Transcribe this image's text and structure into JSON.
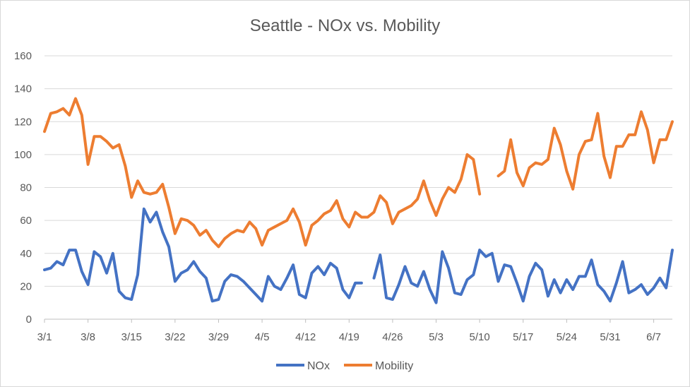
{
  "chart_data": {
    "type": "line",
    "title": "Seattle - NOx vs. Mobility",
    "xlabel": "",
    "ylabel": "",
    "ylim": [
      0,
      160
    ],
    "yticks": [
      0,
      20,
      40,
      60,
      80,
      100,
      120,
      140,
      160
    ],
    "xticks": [
      {
        "index": 0,
        "label": "3/1"
      },
      {
        "index": 7,
        "label": "3/8"
      },
      {
        "index": 14,
        "label": "3/15"
      },
      {
        "index": 21,
        "label": "3/22"
      },
      {
        "index": 28,
        "label": "3/29"
      },
      {
        "index": 35,
        "label": "4/5"
      },
      {
        "index": 42,
        "label": "4/12"
      },
      {
        "index": 49,
        "label": "4/19"
      },
      {
        "index": 56,
        "label": "4/26"
      },
      {
        "index": 63,
        "label": "5/3"
      },
      {
        "index": 70,
        "label": "5/10"
      },
      {
        "index": 77,
        "label": "5/17"
      },
      {
        "index": 84,
        "label": "5/24"
      },
      {
        "index": 91,
        "label": "5/31"
      },
      {
        "index": 98,
        "label": "6/7"
      }
    ],
    "grid": true,
    "legend": "bottom",
    "series": [
      {
        "name": "NOx",
        "color": "#4472c4",
        "values": [
          30,
          31,
          35,
          33,
          42,
          42,
          29,
          21,
          41,
          38,
          28,
          40,
          17,
          13,
          12,
          27,
          67,
          59,
          65,
          53,
          44,
          23,
          28,
          30,
          35,
          29,
          25,
          11,
          12,
          23,
          27,
          26,
          23,
          19,
          15,
          11,
          26,
          20,
          18,
          25,
          33,
          15,
          13,
          28,
          32,
          27,
          34,
          31,
          18,
          13,
          22,
          22,
          null,
          25,
          39,
          13,
          12,
          21,
          32,
          22,
          20,
          29,
          18,
          10,
          41,
          31,
          16,
          15,
          24,
          27,
          42,
          38,
          40,
          23,
          33,
          32,
          22,
          11,
          26,
          34,
          30,
          14,
          24,
          16,
          24,
          18,
          26,
          26,
          36,
          21,
          17,
          11,
          22,
          35,
          16,
          18,
          21,
          15,
          19,
          25,
          19,
          42
        ],
        "visible_through": 101
      },
      {
        "name": "Mobility",
        "color": "#ed7d31",
        "values": [
          114,
          125,
          126,
          128,
          124,
          134,
          124,
          94,
          111,
          111,
          108,
          104,
          106,
          93,
          74,
          84,
          77,
          76,
          77,
          82,
          68,
          52,
          61,
          60,
          57,
          51,
          54,
          48,
          44,
          49,
          52,
          54,
          53,
          59,
          55,
          45,
          54,
          56,
          58,
          60,
          67,
          59,
          45,
          57,
          60,
          64,
          66,
          72,
          61,
          56,
          65,
          62,
          62,
          65,
          75,
          71,
          58,
          65,
          67,
          69,
          73,
          84,
          72,
          63,
          73,
          80,
          77,
          85,
          100,
          97,
          76,
          null,
          null,
          87,
          90,
          109,
          89,
          81,
          92,
          95,
          94,
          97,
          116,
          106,
          90,
          79,
          100,
          108,
          109,
          125,
          99,
          86,
          105,
          105,
          112,
          112,
          126,
          115,
          95,
          109,
          109,
          120
        ]
      }
    ]
  }
}
